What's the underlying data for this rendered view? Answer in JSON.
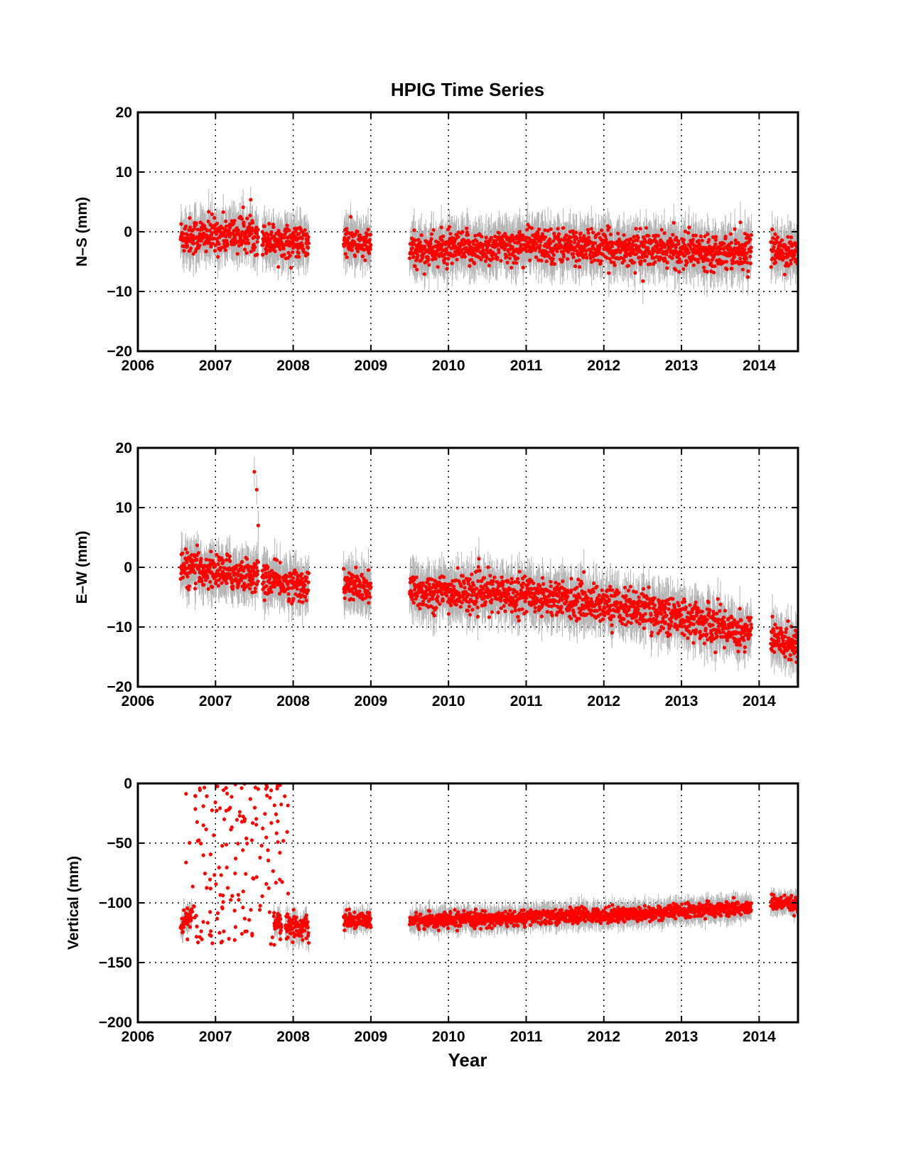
{
  "figure": {
    "title": "HPIG Time Series",
    "xlabel": "Year"
  },
  "colors": {
    "points": "#ff0000",
    "errorbars": "#b4b4b4",
    "axes": "#000000",
    "grid": "#000000"
  },
  "chart_data": [
    {
      "type": "scatter",
      "ylabel": "N–S (mm)",
      "xlim": [
        2006,
        2014.5
      ],
      "ylim": [
        -20,
        20
      ],
      "x_ticks": [
        2006,
        2007,
        2008,
        2009,
        2010,
        2011,
        2012,
        2013,
        2014
      ],
      "y_ticks": [
        -20,
        -10,
        0,
        10,
        20
      ],
      "y_tick_labels": [
        "−20",
        "−10",
        "0",
        "10",
        "20"
      ],
      "grid": true,
      "segments": [
        {
          "x": [
            2006.55,
            2007.55
          ],
          "y_start": -0.8,
          "y_end": -0.3,
          "scatter": 1.5,
          "error": 3.0
        },
        {
          "x": [
            2007.6,
            2008.2
          ],
          "y_start": -1.2,
          "y_end": -2.0,
          "scatter": 1.3,
          "error": 3.0
        },
        {
          "x": [
            2008.65,
            2009.0
          ],
          "y_start": -1.5,
          "y_end": -2.5,
          "scatter": 1.3,
          "error": 3.0
        },
        {
          "x": [
            2009.5,
            2010.9
          ],
          "y_start": -3.2,
          "y_end": -2.5,
          "scatter": 1.4,
          "error": 3.2
        },
        {
          "x": [
            2010.9,
            2012.5
          ],
          "y_start": -2.0,
          "y_end": -3.0,
          "scatter": 1.4,
          "error": 3.2
        },
        {
          "x": [
            2012.5,
            2013.9
          ],
          "y_start": -3.0,
          "y_end": -3.2,
          "scatter": 1.4,
          "error": 3.2
        },
        {
          "x": [
            2014.15,
            2014.5
          ],
          "y_start": -3.0,
          "y_end": -3.5,
          "scatter": 1.3,
          "error": 3.0
        }
      ]
    },
    {
      "type": "scatter",
      "ylabel": "E–W (mm)",
      "xlim": [
        2006,
        2014.5
      ],
      "ylim": [
        -20,
        20
      ],
      "x_ticks": [
        2006,
        2007,
        2008,
        2009,
        2010,
        2011,
        2012,
        2013,
        2014
      ],
      "y_ticks": [
        -20,
        -10,
        0,
        10,
        20
      ],
      "y_tick_labels": [
        "−20",
        "−10",
        "0",
        "10",
        "20"
      ],
      "grid": true,
      "segments": [
        {
          "x": [
            2006.55,
            2007.55
          ],
          "y_start": 0.0,
          "y_end": -1.5,
          "scatter": 1.4,
          "error": 3.0
        },
        {
          "x": [
            2007.6,
            2008.2
          ],
          "y_start": -2.0,
          "y_end": -3.2,
          "scatter": 1.3,
          "error": 3.0
        },
        {
          "x": [
            2008.65,
            2009.0
          ],
          "y_start": -3.0,
          "y_end": -3.8,
          "scatter": 1.3,
          "error": 3.0
        },
        {
          "x": [
            2009.5,
            2011.0
          ],
          "y_start": -4.0,
          "y_end": -4.5,
          "scatter": 1.5,
          "error": 3.2
        },
        {
          "x": [
            2011.0,
            2012.5
          ],
          "y_start": -4.5,
          "y_end": -7.0,
          "scatter": 1.5,
          "error": 3.2
        },
        {
          "x": [
            2012.5,
            2013.9
          ],
          "y_start": -7.0,
          "y_end": -11.0,
          "scatter": 1.6,
          "error": 3.2
        },
        {
          "x": [
            2014.15,
            2014.5
          ],
          "y_start": -12.0,
          "y_end": -13.0,
          "scatter": 1.4,
          "error": 3.0
        }
      ],
      "outliers": [
        {
          "x": 2007.5,
          "y": 16.0
        },
        {
          "x": 2007.53,
          "y": 13.0
        },
        {
          "x": 2007.55,
          "y": 7.0
        }
      ]
    },
    {
      "type": "scatter",
      "ylabel": "Vertical (mm)",
      "xlim": [
        2006,
        2014.5
      ],
      "ylim": [
        -200,
        0
      ],
      "x_ticks": [
        2006,
        2007,
        2008,
        2009,
        2010,
        2011,
        2012,
        2013,
        2014
      ],
      "y_ticks": [
        -200,
        -150,
        -100,
        -50,
        0
      ],
      "y_tick_labels": [
        "−200",
        "−150",
        "−100",
        "−50",
        "0"
      ],
      "grid": true,
      "segments": [
        {
          "x": [
            2006.55,
            2006.7
          ],
          "y_start": -118,
          "y_end": -108,
          "scatter": 4,
          "error": 8
        },
        {
          "x": [
            2007.75,
            2007.85
          ],
          "y_start": -116,
          "y_end": -116,
          "scatter": 4,
          "error": 8
        },
        {
          "x": [
            2007.9,
            2008.2
          ],
          "y_start": -118,
          "y_end": -122,
          "scatter": 5,
          "error": 9
        },
        {
          "x": [
            2008.65,
            2009.0
          ],
          "y_start": -115,
          "y_end": -115,
          "scatter": 3,
          "error": 7
        },
        {
          "x": [
            2009.5,
            2011.0
          ],
          "y_start": -115,
          "y_end": -113,
          "scatter": 3,
          "error": 8
        },
        {
          "x": [
            2011.0,
            2012.5
          ],
          "y_start": -112,
          "y_end": -109,
          "scatter": 3,
          "error": 8
        },
        {
          "x": [
            2012.5,
            2013.9
          ],
          "y_start": -109,
          "y_end": -104,
          "scatter": 3,
          "error": 8
        },
        {
          "x": [
            2014.15,
            2014.5
          ],
          "y_start": -100,
          "y_end": -102,
          "scatter": 3,
          "error": 7
        }
      ],
      "cloud": {
        "x": [
          2006.6,
          2007.95
        ],
        "y": [
          -136,
          0
        ],
        "count": 170
      }
    }
  ]
}
